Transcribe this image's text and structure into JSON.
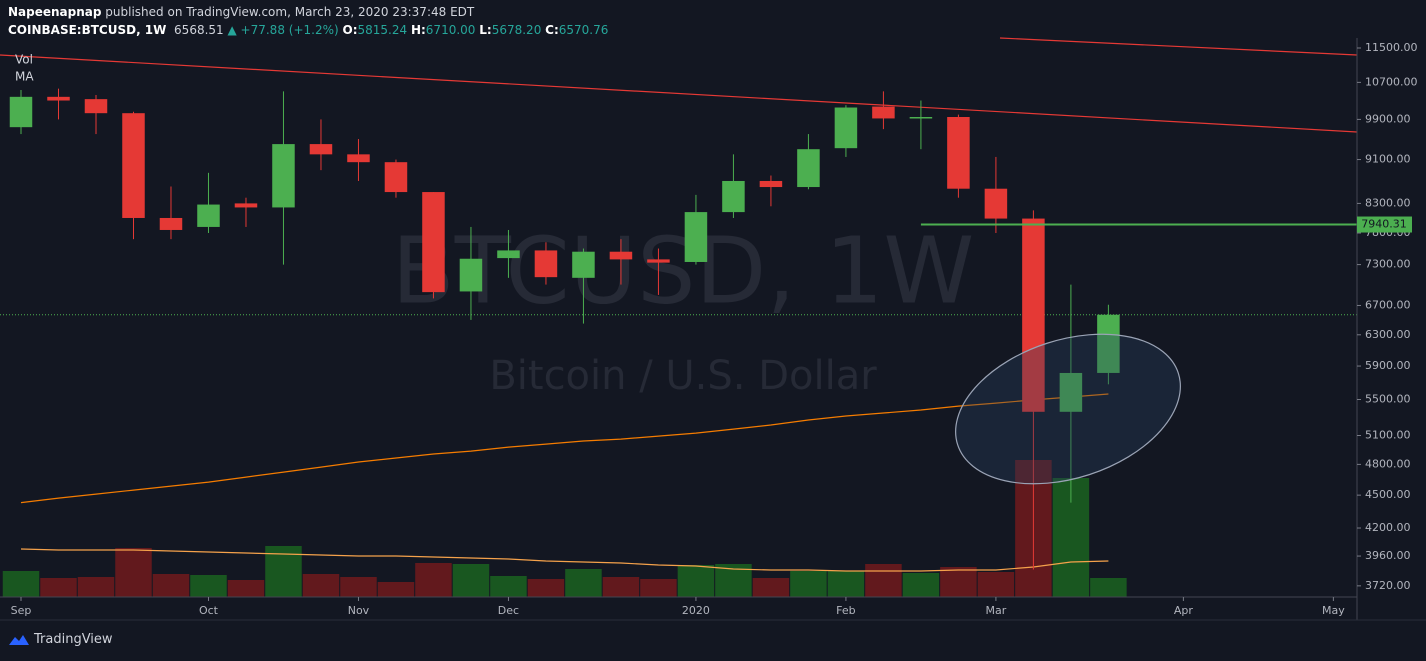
{
  "header": {
    "author": "Napeenapnap",
    "published": "published on TradingView.com, March 23, 2020 23:37:48 EDT",
    "symbol": "COINBASE:BTCUSD, 1W",
    "last": "6568.51",
    "change": "▲ +77.88 (+1.2%)",
    "open_label": "O:",
    "open": "5815.24",
    "high_label": "H:",
    "high": "6710.00",
    "low_label": "L:",
    "low": "5678.20",
    "close_label": "C:",
    "close": "6570.76"
  },
  "chart_data": {
    "type": "candlestick",
    "watermark": "BTCUSD, 1W",
    "watermark_subtitle": "Bitcoin / U.S. Dollar",
    "x": [
      0,
      1,
      2,
      3,
      4,
      5,
      6,
      7,
      8,
      9,
      10,
      11,
      12,
      13,
      14,
      15,
      16,
      17,
      18,
      19,
      20,
      21,
      22,
      23,
      24,
      25,
      26,
      27,
      28,
      29
    ],
    "xlim": [
      -0.56,
      35.63
    ],
    "xticks": [
      {
        "value": 0,
        "label": "Sep"
      },
      {
        "value": 5,
        "label": "Oct"
      },
      {
        "value": 9,
        "label": "Nov"
      },
      {
        "value": 13,
        "label": "Dec"
      },
      {
        "value": 18,
        "label": "2020"
      },
      {
        "value": 22,
        "label": "Feb"
      },
      {
        "value": 26,
        "label": "Mar"
      },
      {
        "value": 31,
        "label": "Apr"
      },
      {
        "value": 35,
        "label": "May"
      }
    ],
    "open": [
      9740,
      10380,
      10330,
      10030,
      8050,
      7900,
      8300,
      8230,
      9400,
      9200,
      9050,
      8500,
      6900,
      7400,
      7520,
      7100,
      7500,
      7380,
      7340,
      8150,
      8700,
      8590,
      9320,
      10170,
      9920,
      9950,
      8560,
      8040,
      5360,
      5815.24
    ],
    "high": [
      10530,
      10560,
      10420,
      10060,
      8600,
      8850,
      8400,
      10500,
      9900,
      9500,
      9100,
      8500,
      7900,
      7850,
      7650,
      7550,
      7700,
      7550,
      8450,
      9200,
      8800,
      9600,
      10200,
      10500,
      10300,
      10000,
      9150,
      8180,
      7000,
      6710
    ],
    "low": [
      9600,
      9900,
      9600,
      7700,
      7700,
      7800,
      7900,
      7300,
      8900,
      8700,
      8400,
      6800,
      6500,
      7100,
      7000,
      6450,
      7000,
      6850,
      7300,
      8050,
      8250,
      8550,
      9150,
      9700,
      9300,
      8400,
      7800,
      3850,
      4430,
      5678.2
    ],
    "close": [
      10380,
      10300,
      10030,
      8050,
      7850,
      8280,
      8230,
      9400,
      9200,
      9050,
      8500,
      6890,
      7390,
      7520,
      7110,
      7500,
      7380,
      7330,
      8150,
      8700,
      8590,
      9300,
      10150,
      9920,
      9950,
      8560,
      8040,
      5360,
      5815,
      6570.76
    ],
    "up_color": "#4caf50",
    "down_color": "#e53935",
    "ylim": [
      3634,
      11744
    ],
    "log_scale": true,
    "yticks": [
      {
        "value": 11500,
        "label": "11500.00"
      },
      {
        "value": 10700,
        "label": "10700.00"
      },
      {
        "value": 9900,
        "label": "9900.00"
      },
      {
        "value": 9100,
        "label": "9100.00"
      },
      {
        "value": 8300,
        "label": "8300.00"
      },
      {
        "value": 7800,
        "label": "7800.00"
      },
      {
        "value": 7300,
        "label": "7300.00"
      },
      {
        "value": 6700,
        "label": "6700.00"
      },
      {
        "value": 6300,
        "label": "6300.00"
      },
      {
        "value": 5900,
        "label": "5900.00"
      },
      {
        "value": 5500,
        "label": "5500.00"
      },
      {
        "value": 5100,
        "label": "5100.00"
      },
      {
        "value": 4800,
        "label": "4800.00"
      },
      {
        "value": 4500,
        "label": "4500.00"
      },
      {
        "value": 4200,
        "label": "4200.00"
      },
      {
        "value": 3960,
        "label": "3960.00"
      },
      {
        "value": 3720,
        "label": "3720.00"
      }
    ],
    "price_ma": {
      "color": "#f57c00",
      "values": [
        4430,
        4472,
        4510,
        4548,
        4586,
        4625,
        4674,
        4723,
        4773,
        4824,
        4865,
        4906,
        4936,
        4977,
        5009,
        5041,
        5062,
        5094,
        5126,
        5169,
        5213,
        5268,
        5313,
        5346,
        5380,
        5425,
        5459,
        5495,
        5529,
        5564
      ]
    },
    "volume": {
      "name": "Vol",
      "up_color": "#1b5e20",
      "down_color": "#6b1a1d",
      "ylim": [
        0,
        559
      ],
      "values": [
        26,
        19,
        20,
        49,
        23,
        22,
        17,
        51,
        23,
        20,
        15,
        34,
        33,
        21,
        18,
        28,
        20,
        18,
        32,
        33,
        19,
        26,
        26,
        33,
        24,
        30,
        25,
        137,
        119,
        19
      ]
    },
    "volume_ma": {
      "name": "MA",
      "color": "#f5a24b",
      "values": [
        48,
        47,
        47,
        47,
        46,
        45,
        44,
        43,
        42,
        41,
        41,
        40,
        39,
        38,
        36,
        35,
        34,
        32,
        31,
        28,
        27,
        27,
        26,
        26,
        26,
        27,
        27,
        30,
        35,
        36
      ]
    },
    "level": 7940.31,
    "level_color": "#4caf50",
    "last_line_color": "#4caf50"
  },
  "footer": {
    "brand": "TradingView"
  }
}
